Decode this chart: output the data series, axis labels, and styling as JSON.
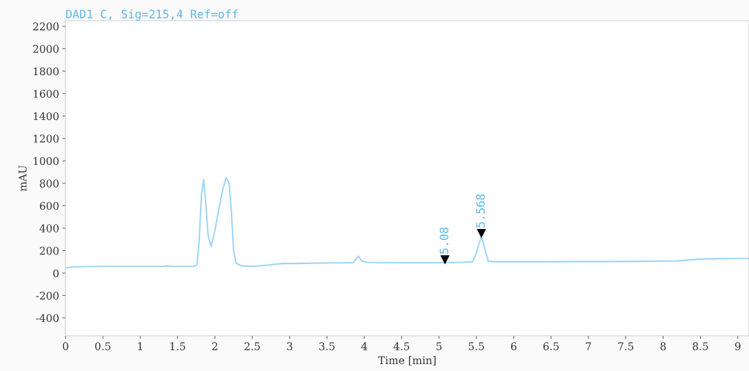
{
  "chart_data": {
    "type": "line",
    "title": "DAD1 C, Sig=215,4 Ref=off",
    "xlabel": "Time [min]",
    "ylabel": "mAU",
    "series": [
      {
        "color": "#9fd4f5",
        "x": [
          0,
          0.1,
          0.3,
          0.6,
          1.0,
          1.3,
          1.35,
          1.4,
          1.7,
          1.76,
          1.79,
          1.82,
          1.85,
          1.88,
          1.91,
          1.95,
          2.0,
          2.05,
          2.1,
          2.15,
          2.19,
          2.22,
          2.25,
          2.28,
          2.35,
          2.5,
          2.7,
          2.9,
          3.1,
          3.5,
          3.85,
          3.92,
          3.97,
          4.05,
          4.5,
          5.0,
          5.08,
          5.3,
          5.45,
          5.5,
          5.568,
          5.62,
          5.66,
          5.75,
          6.2,
          6.8,
          7.2,
          7.8,
          8.2,
          8.5,
          9.0,
          9.15
        ],
        "values": [
          45,
          55,
          58,
          60,
          60,
          60,
          65,
          60,
          60,
          70,
          300,
          700,
          830,
          600,
          330,
          240,
          380,
          560,
          730,
          850,
          800,
          550,
          200,
          90,
          65,
          60,
          70,
          85,
          85,
          90,
          92,
          150,
          105,
          95,
          92,
          92,
          95,
          95,
          100,
          180,
          330,
          200,
          105,
          100,
          100,
          102,
          102,
          105,
          108,
          125,
          130,
          130
        ]
      }
    ],
    "xlim": [
      0,
      9.15
    ],
    "ylim": [
      -560,
      2250
    ],
    "xticks": [
      0,
      {
        "value": 0.5,
        "label": "0.5"
      },
      1,
      {
        "value": 1.5,
        "label": "1.5"
      },
      2,
      {
        "value": 2.5,
        "label": "2.5"
      },
      3,
      {
        "value": 3.5,
        "label": "3.5"
      },
      4,
      {
        "value": 4.5,
        "label": "4.5"
      },
      5,
      {
        "value": 5.5,
        "label": "5.5"
      },
      6,
      {
        "value": 6.5,
        "label": "6.5"
      },
      7,
      {
        "value": 7.5,
        "label": "7.5"
      },
      8,
      {
        "value": 8.5,
        "label": "8.5"
      },
      9
    ],
    "yticks": [
      -400,
      -200,
      0,
      200,
      400,
      600,
      800,
      1000,
      1200,
      1400,
      1600,
      1800,
      2000,
      2200
    ],
    "annotations": [
      {
        "text": "5.08",
        "x": 5.08,
        "y": 95
      },
      {
        "text": "5.568",
        "x": 5.568,
        "y": 330
      }
    ],
    "grid": false,
    "legend": false,
    "marker": "none",
    "line_style": "solid"
  }
}
